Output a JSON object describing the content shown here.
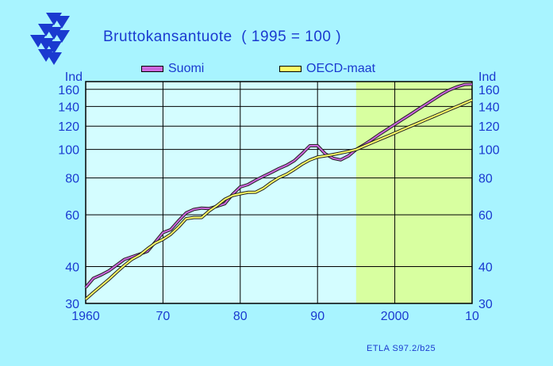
{
  "colors": {
    "background": "#a8f4ff",
    "plot_bg": "#d4fdff",
    "forecast_bg": "#d8ffa0",
    "text": "#1a3ad0",
    "suomi": "#cc66dd",
    "oecd": "#ffff66",
    "logo": "#1a3ad0"
  },
  "logo": {
    "icon": "etla-triangles-logo"
  },
  "credit": "ETLA S97.2/b25",
  "chart_data": {
    "type": "line",
    "title": "Bruttokansantuote  ( 1995 = 100 )",
    "ylabel_left": "Ind",
    "ylabel_right": "Ind",
    "y_scale": "log",
    "ylim": [
      30,
      170
    ],
    "xlim": [
      1960,
      2010
    ],
    "y_ticks": [
      30,
      40,
      60,
      80,
      100,
      120,
      140,
      160
    ],
    "x_ticks": [
      {
        "value": 1960,
        "label": "1960"
      },
      {
        "value": 1970,
        "label": "70"
      },
      {
        "value": 1980,
        "label": "80"
      },
      {
        "value": 1990,
        "label": "90"
      },
      {
        "value": 2000,
        "label": "2000"
      },
      {
        "value": 2010,
        "label": "10"
      }
    ],
    "forecast_start": 1995,
    "grid": true,
    "legend_position": "top",
    "series": [
      {
        "name": "Suomi",
        "color": "#cc66dd",
        "x": [
          1960,
          1961,
          1962,
          1963,
          1964,
          1965,
          1966,
          1967,
          1968,
          1969,
          1970,
          1971,
          1972,
          1973,
          1974,
          1975,
          1976,
          1977,
          1978,
          1979,
          1980,
          1981,
          1982,
          1983,
          1984,
          1985,
          1986,
          1987,
          1988,
          1989,
          1990,
          1991,
          1992,
          1993,
          1994,
          1995,
          1996,
          1997,
          1998,
          1999,
          2000,
          2001,
          2002,
          2003,
          2004,
          2005,
          2006,
          2007,
          2008,
          2009,
          2010
        ],
        "values": [
          34,
          36.5,
          37.5,
          38.7,
          40.5,
          42.3,
          43.2,
          44.1,
          45.1,
          48.5,
          52.2,
          53.4,
          57.2,
          60.9,
          62.6,
          63.2,
          63,
          64.1,
          65.4,
          70.4,
          74.6,
          76,
          78.6,
          81.1,
          83.5,
          86.1,
          88.4,
          91.6,
          96.8,
          102.9,
          103,
          96.7,
          93.3,
          92.2,
          95.1,
          100,
          103.6,
          107.9,
          112.5,
          117,
          121.7,
          126.5,
          131.5,
          136.8,
          142.2,
          147.8,
          153.7,
          158.9,
          163,
          166,
          166.5
        ]
      },
      {
        "name": "OECD-maat",
        "color": "#ffff66",
        "x": [
          1960,
          1961,
          1962,
          1963,
          1964,
          1965,
          1966,
          1967,
          1968,
          1969,
          1970,
          1971,
          1972,
          1973,
          1974,
          1975,
          1976,
          1977,
          1978,
          1979,
          1980,
          1981,
          1982,
          1983,
          1984,
          1985,
          1986,
          1987,
          1988,
          1989,
          1990,
          1991,
          1992,
          1993,
          1994,
          1995,
          1996,
          1997,
          1998,
          1999,
          2000,
          2001,
          2002,
          2003,
          2004,
          2005,
          2006,
          2007,
          2008,
          2009,
          2010
        ],
        "values": [
          31,
          32.7,
          34.4,
          36.2,
          38.3,
          40.4,
          42.4,
          43.8,
          46,
          48.1,
          49.5,
          51.5,
          54.5,
          58.2,
          58.7,
          58.7,
          61.9,
          64.5,
          67.7,
          69.7,
          70.7,
          71.5,
          71.6,
          73.8,
          77.2,
          80.2,
          82.4,
          85.5,
          89.1,
          92.1,
          94.2,
          95.1,
          96.1,
          97.2,
          98.5,
          100,
          102.6,
          105.3,
          108,
          110.8,
          113.7,
          116.7,
          119.8,
          122.9,
          126.1,
          129.4,
          132.8,
          136.3,
          139.8,
          143.5,
          147.2
        ]
      }
    ]
  }
}
